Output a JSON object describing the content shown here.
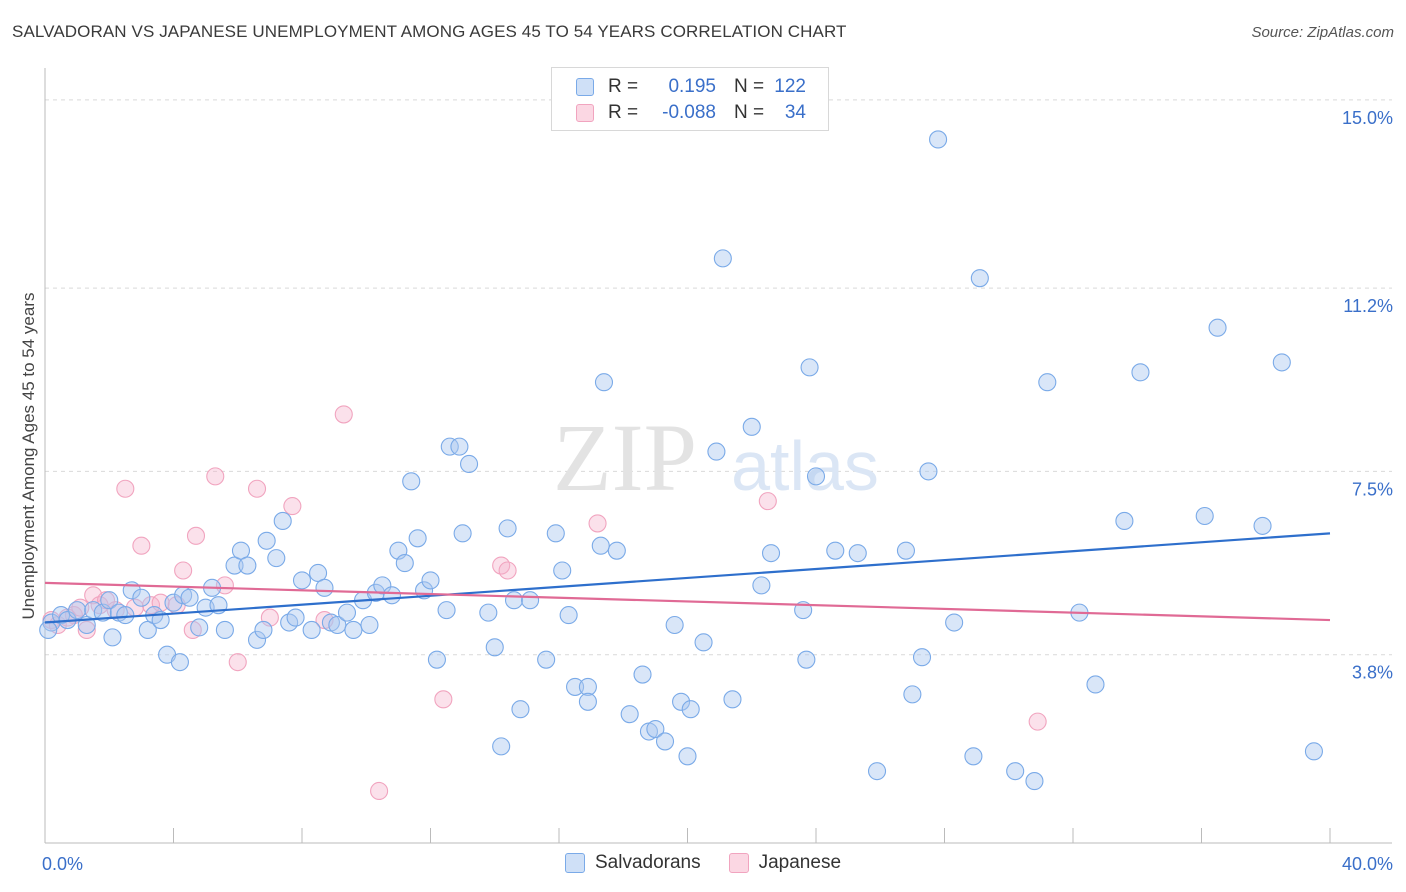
{
  "header": {
    "title": "SALVADORAN VS JAPANESE UNEMPLOYMENT AMONG AGES 45 TO 54 YEARS CORRELATION CHART",
    "source": "Source: ZipAtlas.com"
  },
  "watermark": {
    "zip": "ZIP",
    "atlas": "atlas"
  },
  "legend": {
    "rows": [
      {
        "r_label": "R =",
        "r_value": "0.195",
        "n_label": "N =",
        "n_value": "122",
        "color": "#7aaae8"
      },
      {
        "r_label": "R =",
        "r_value": "-0.088",
        "n_label": "N =",
        "n_value": "34",
        "color": "#f1a4bf"
      }
    ]
  },
  "bottom_legend": [
    {
      "label": "Salvadorans",
      "color": "#7aaae8"
    },
    {
      "label": "Japanese",
      "color": "#f1a4bf"
    }
  ],
  "chart_data": {
    "type": "scatter",
    "title": "SALVADORAN VS JAPANESE UNEMPLOYMENT AMONG AGES 45 TO 54 YEARS CORRELATION CHART",
    "xlabel": "",
    "ylabel": "Unemployment Among Ages 45 to 54 years",
    "xlim": [
      0,
      40
    ],
    "ylim": [
      0,
      15.4
    ],
    "x_tick_labels": [
      "0.0%",
      "40.0%"
    ],
    "y_ticks": [
      {
        "value": 3.8,
        "label": "3.8%"
      },
      {
        "value": 7.5,
        "label": "7.5%"
      },
      {
        "value": 11.2,
        "label": "11.2%"
      },
      {
        "value": 15.0,
        "label": "15.0%"
      }
    ],
    "grid": "horizontal dashed",
    "legend_position": "top-center",
    "series": [
      {
        "name": "Salvadorans",
        "color": "#7aaae8",
        "line_color": "#2e6fcc",
        "trend": {
          "x": [
            0,
            40
          ],
          "y": [
            4.45,
            6.25
          ]
        },
        "points": [
          [
            0.2,
            4.45
          ],
          [
            0.5,
            4.6
          ],
          [
            0.7,
            4.5
          ],
          [
            1.0,
            4.7
          ],
          [
            1.3,
            4.4
          ],
          [
            1.5,
            4.7
          ],
          [
            1.8,
            4.65
          ],
          [
            2.0,
            4.9
          ],
          [
            2.1,
            4.15
          ],
          [
            2.3,
            4.65
          ],
          [
            2.5,
            4.6
          ],
          [
            2.7,
            5.1
          ],
          [
            3.0,
            4.95
          ],
          [
            3.2,
            4.3
          ],
          [
            3.4,
            4.6
          ],
          [
            3.6,
            4.5
          ],
          [
            3.8,
            3.8
          ],
          [
            4.0,
            4.85
          ],
          [
            4.2,
            3.65
          ],
          [
            4.3,
            5.0
          ],
          [
            4.5,
            4.95
          ],
          [
            4.8,
            4.35
          ],
          [
            5.0,
            4.75
          ],
          [
            5.2,
            5.15
          ],
          [
            5.4,
            4.8
          ],
          [
            5.6,
            4.3
          ],
          [
            5.9,
            5.6
          ],
          [
            6.1,
            5.9
          ],
          [
            6.3,
            5.6
          ],
          [
            6.6,
            4.1
          ],
          [
            6.8,
            4.3
          ],
          [
            6.9,
            6.1
          ],
          [
            7.2,
            5.75
          ],
          [
            7.4,
            6.5
          ],
          [
            7.6,
            4.45
          ],
          [
            7.8,
            4.55
          ],
          [
            8.0,
            5.3
          ],
          [
            8.3,
            4.3
          ],
          [
            8.5,
            5.45
          ],
          [
            8.7,
            5.15
          ],
          [
            8.9,
            4.45
          ],
          [
            9.1,
            4.4
          ],
          [
            9.4,
            4.65
          ],
          [
            9.6,
            4.3
          ],
          [
            9.9,
            4.9
          ],
          [
            10.1,
            4.4
          ],
          [
            10.3,
            5.05
          ],
          [
            10.5,
            5.2
          ],
          [
            10.8,
            5.0
          ],
          [
            11.0,
            5.9
          ],
          [
            11.2,
            5.65
          ],
          [
            11.4,
            7.3
          ],
          [
            11.6,
            6.15
          ],
          [
            11.8,
            5.1
          ],
          [
            12.0,
            5.3
          ],
          [
            12.2,
            3.7
          ],
          [
            12.5,
            4.7
          ],
          [
            12.6,
            8.0
          ],
          [
            12.9,
            8.0
          ],
          [
            13.0,
            6.25
          ],
          [
            13.2,
            7.65
          ],
          [
            13.8,
            4.65
          ],
          [
            14.0,
            3.95
          ],
          [
            14.2,
            1.95
          ],
          [
            14.4,
            6.35
          ],
          [
            14.6,
            4.9
          ],
          [
            14.8,
            2.7
          ],
          [
            15.1,
            4.9
          ],
          [
            15.6,
            3.7
          ],
          [
            15.9,
            6.25
          ],
          [
            16.1,
            5.5
          ],
          [
            16.3,
            4.6
          ],
          [
            16.5,
            3.15
          ],
          [
            16.9,
            3.15
          ],
          [
            16.9,
            2.85
          ],
          [
            17.3,
            6.0
          ],
          [
            17.4,
            9.3
          ],
          [
            17.8,
            5.9
          ],
          [
            18.2,
            2.6
          ],
          [
            18.6,
            3.4
          ],
          [
            18.8,
            2.25
          ],
          [
            19.0,
            2.3
          ],
          [
            19.3,
            2.05
          ],
          [
            19.6,
            4.4
          ],
          [
            19.8,
            2.85
          ],
          [
            20.0,
            1.75
          ],
          [
            20.1,
            2.7
          ],
          [
            20.5,
            4.05
          ],
          [
            20.9,
            7.9
          ],
          [
            21.1,
            11.8
          ],
          [
            21.4,
            2.9
          ],
          [
            22.0,
            8.4
          ],
          [
            22.3,
            5.2
          ],
          [
            22.6,
            5.85
          ],
          [
            23.6,
            4.7
          ],
          [
            23.7,
            3.7
          ],
          [
            23.8,
            9.6
          ],
          [
            24.0,
            7.4
          ],
          [
            24.6,
            5.9
          ],
          [
            25.3,
            5.85
          ],
          [
            25.9,
            1.45
          ],
          [
            26.8,
            5.9
          ],
          [
            27.0,
            3.0
          ],
          [
            27.3,
            3.75
          ],
          [
            27.5,
            7.5
          ],
          [
            27.8,
            14.2
          ],
          [
            28.3,
            4.45
          ],
          [
            28.9,
            1.75
          ],
          [
            29.1,
            11.4
          ],
          [
            30.2,
            1.45
          ],
          [
            30.8,
            1.25
          ],
          [
            31.2,
            9.3
          ],
          [
            32.2,
            4.65
          ],
          [
            32.7,
            3.2
          ],
          [
            33.6,
            6.5
          ],
          [
            34.1,
            9.5
          ],
          [
            36.1,
            6.6
          ],
          [
            36.5,
            10.4
          ],
          [
            37.9,
            6.4
          ],
          [
            38.5,
            9.7
          ],
          [
            39.5,
            1.85
          ],
          [
            0.1,
            4.3
          ]
        ]
      },
      {
        "name": "Japanese",
        "color": "#f1a4bf",
        "line_color": "#e06a95",
        "trend": {
          "x": [
            0,
            40
          ],
          "y": [
            5.25,
            4.5
          ]
        },
        "points": [
          [
            0.2,
            4.5
          ],
          [
            0.4,
            4.4
          ],
          [
            0.7,
            4.55
          ],
          [
            0.9,
            4.6
          ],
          [
            1.1,
            4.75
          ],
          [
            1.3,
            4.3
          ],
          [
            1.5,
            5.0
          ],
          [
            1.7,
            4.8
          ],
          [
            1.9,
            4.9
          ],
          [
            2.2,
            4.7
          ],
          [
            2.5,
            7.15
          ],
          [
            2.8,
            4.75
          ],
          [
            3.0,
            6.0
          ],
          [
            3.3,
            4.8
          ],
          [
            3.6,
            4.85
          ],
          [
            4.1,
            4.8
          ],
          [
            4.3,
            5.5
          ],
          [
            4.6,
            4.3
          ],
          [
            4.7,
            6.2
          ],
          [
            5.3,
            7.4
          ],
          [
            5.6,
            5.2
          ],
          [
            6.0,
            3.65
          ],
          [
            6.6,
            7.15
          ],
          [
            7.0,
            4.55
          ],
          [
            7.7,
            6.8
          ],
          [
            8.7,
            4.5
          ],
          [
            9.3,
            8.65
          ],
          [
            10.4,
            1.05
          ],
          [
            12.4,
            2.9
          ],
          [
            14.2,
            5.6
          ],
          [
            14.4,
            5.5
          ],
          [
            17.2,
            6.45
          ],
          [
            22.5,
            6.9
          ],
          [
            30.9,
            2.45
          ]
        ]
      }
    ]
  }
}
